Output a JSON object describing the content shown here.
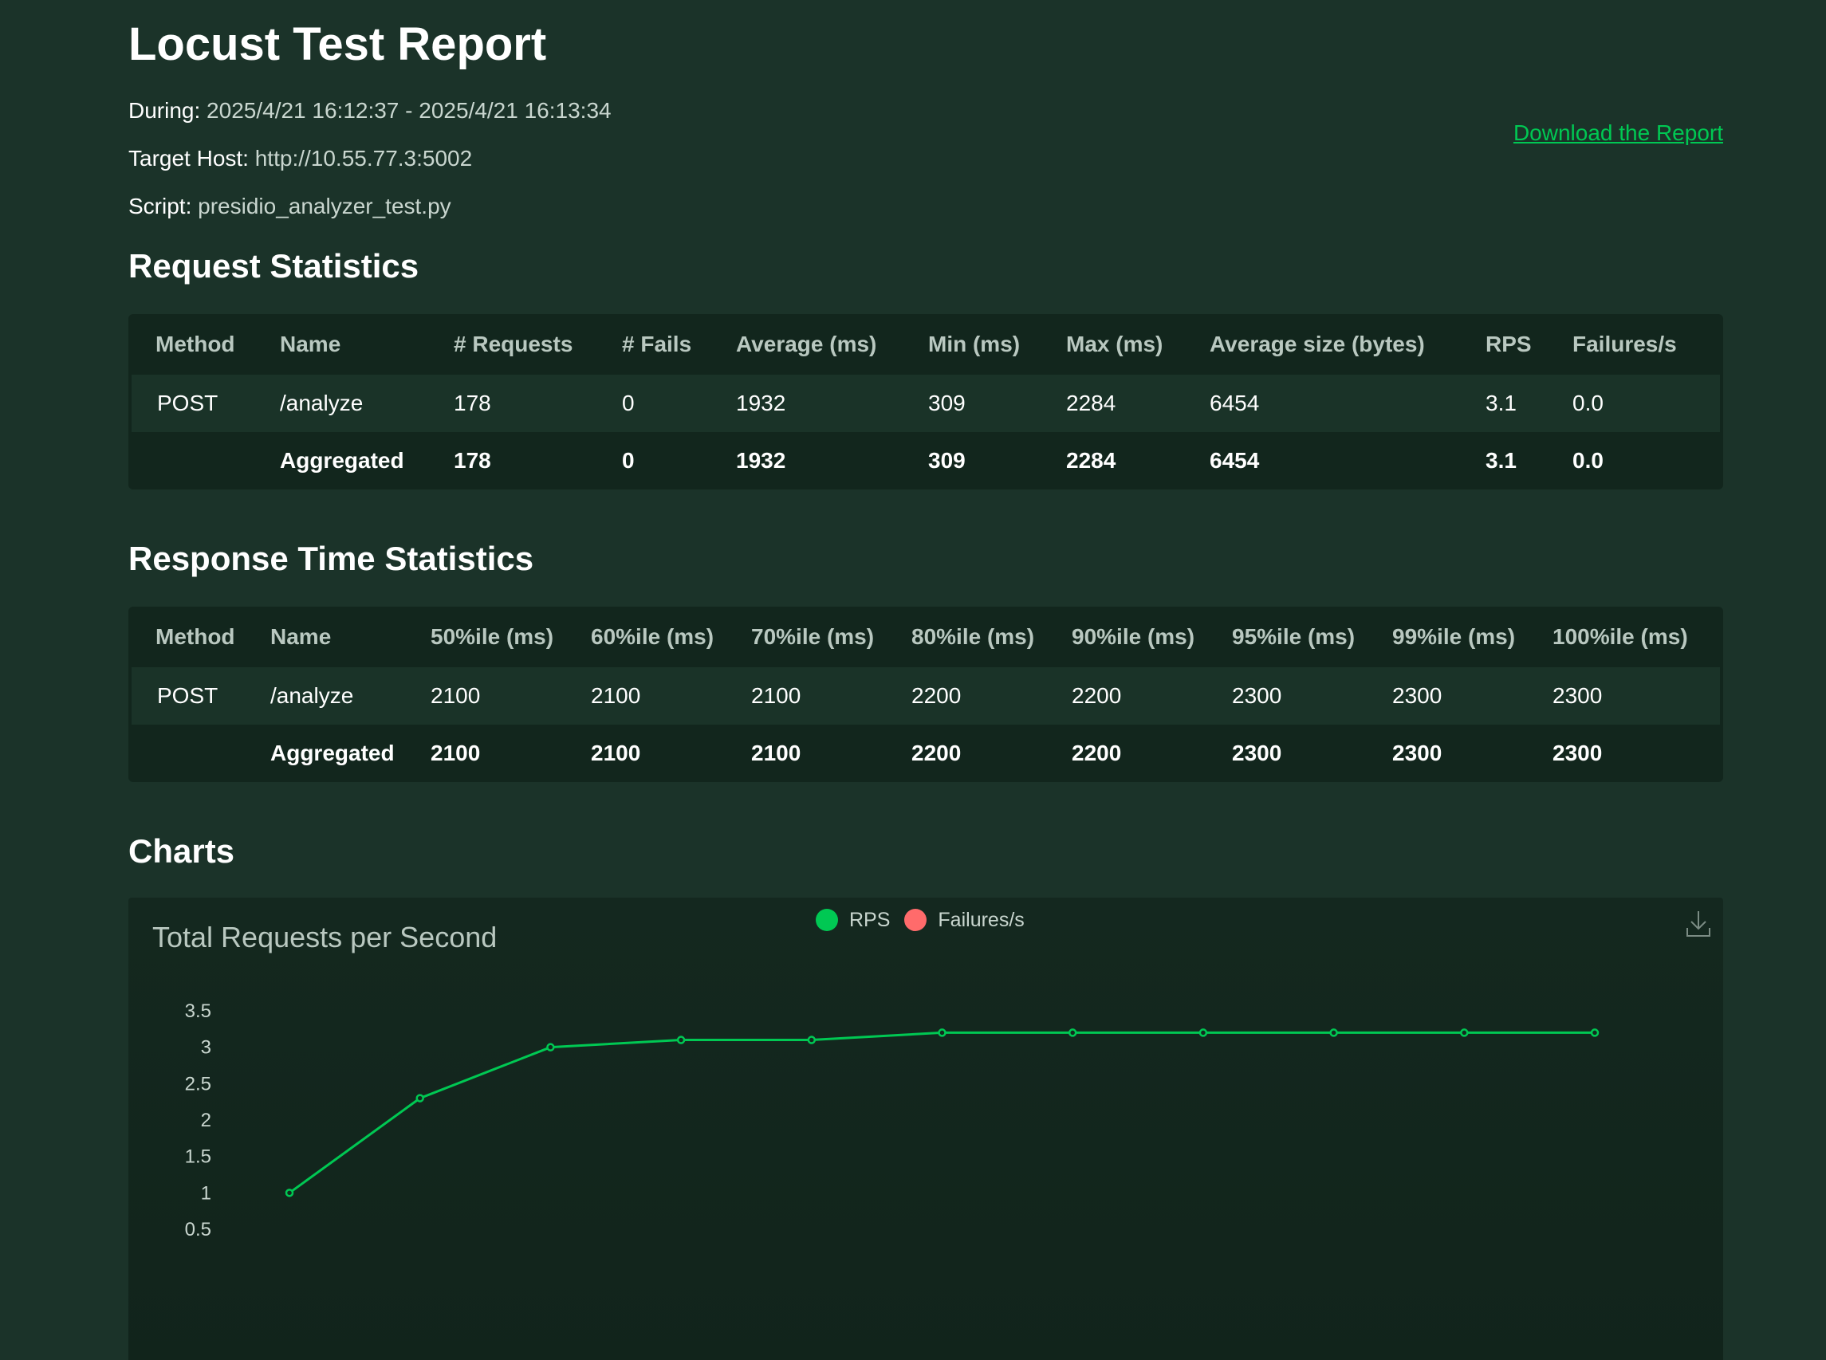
{
  "header": {
    "title": "Locust Test Report",
    "during_label": "During:",
    "during_value": "2025/4/21 16:12:37 - 2025/4/21 16:13:34",
    "host_label": "Target Host:",
    "host_value": "http://10.55.77.3:5002",
    "script_label": "Script:",
    "script_value": "presidio_analyzer_test.py",
    "download_label": "Download the Report"
  },
  "request_stats": {
    "title": "Request Statistics",
    "columns": [
      "Method",
      "Name",
      "# Requests",
      "# Fails",
      "Average (ms)",
      "Min (ms)",
      "Max (ms)",
      "Average size (bytes)",
      "RPS",
      "Failures/s"
    ],
    "rows": [
      [
        "POST",
        "/analyze",
        "178",
        "0",
        "1932",
        "309",
        "2284",
        "6454",
        "3.1",
        "0.0"
      ],
      [
        "",
        "Aggregated",
        "178",
        "0",
        "1932",
        "309",
        "2284",
        "6454",
        "3.1",
        "0.0"
      ]
    ]
  },
  "response_stats": {
    "title": "Response Time Statistics",
    "columns": [
      "Method",
      "Name",
      "50%ile (ms)",
      "60%ile (ms)",
      "70%ile (ms)",
      "80%ile (ms)",
      "90%ile (ms)",
      "95%ile (ms)",
      "99%ile (ms)",
      "100%ile (ms)"
    ],
    "rows": [
      [
        "POST",
        "/analyze",
        "2100",
        "2100",
        "2100",
        "2200",
        "2200",
        "2300",
        "2300",
        "2300"
      ],
      [
        "",
        "Aggregated",
        "2100",
        "2100",
        "2100",
        "2200",
        "2200",
        "2300",
        "2300",
        "2300"
      ]
    ]
  },
  "charts": {
    "title": "Charts",
    "download_icon": "download-icon"
  },
  "chart_data": {
    "type": "line",
    "title": "Total Requests per Second",
    "y_ticks": [
      "3.5",
      "3",
      "2.5",
      "2",
      "1.5",
      "1",
      "0.5"
    ],
    "ylim": [
      0,
      3.5
    ],
    "grid": false,
    "legend_position": "top-center",
    "series": [
      {
        "name": "RPS",
        "color": "#00c853",
        "values": [
          1,
          2.3,
          3,
          3.1,
          3.1,
          3.2,
          3.2,
          3.2,
          3.2,
          3.2,
          3.2
        ]
      },
      {
        "name": "Failures/s",
        "color": "#ff6b6b",
        "values": []
      }
    ]
  },
  "colors": {
    "background": "#1b3329",
    "accent": "#00c853",
    "failure": "#ff6b6b"
  }
}
